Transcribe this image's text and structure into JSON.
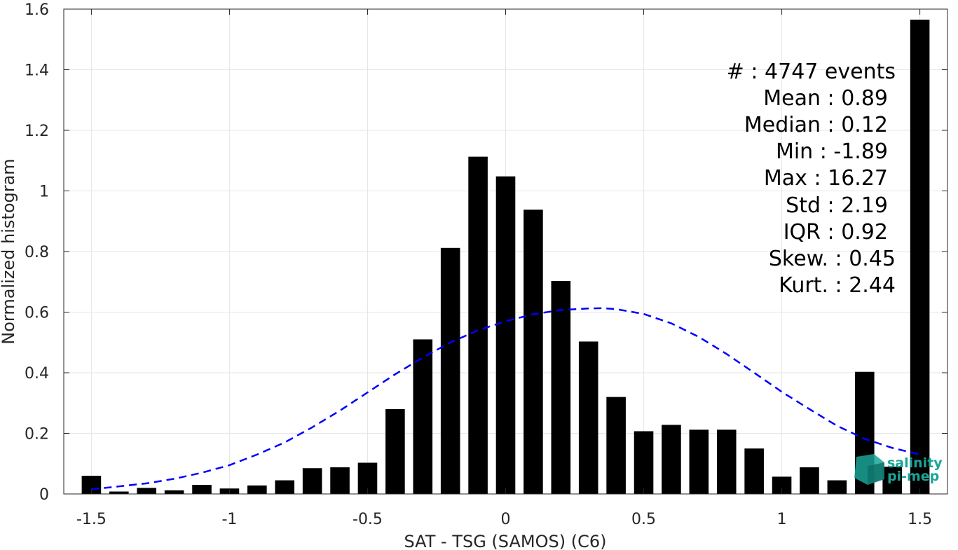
{
  "chart_data": {
    "type": "bar",
    "xlabel": "SAT - TSG (SAMOS) (C6)",
    "ylabel": "Normalized histogram",
    "xlim": [
      -1.6,
      1.6
    ],
    "ylim": [
      0,
      1.6
    ],
    "xticks": [
      -1.5,
      -1,
      -0.5,
      0,
      0.5,
      1,
      1.5
    ],
    "xtick_labels": [
      "-1.5",
      "-1",
      "-0.5",
      "0",
      "0.5",
      "1",
      "1.5"
    ],
    "yticks": [
      0,
      0.2,
      0.4,
      0.6,
      0.8,
      1,
      1.2,
      1.4,
      1.6
    ],
    "ytick_labels": [
      "0",
      "0.2",
      "0.4",
      "0.6",
      "0.8",
      "1",
      "1.2",
      "1.4",
      "1.6"
    ],
    "grid": true,
    "bar_width": 0.07,
    "x": [
      -1.5,
      -1.4,
      -1.3,
      -1.2,
      -1.1,
      -1.0,
      -0.9,
      -0.8,
      -0.7,
      -0.6,
      -0.5,
      -0.4,
      -0.3,
      -0.2,
      -0.1,
      0.0,
      0.1,
      0.2,
      0.3,
      0.4,
      0.5,
      0.6,
      0.7,
      0.8,
      0.9,
      1.0,
      1.1,
      1.2,
      1.3,
      1.4,
      1.5
    ],
    "values": [
      0.06,
      0.008,
      0.02,
      0.012,
      0.03,
      0.018,
      0.028,
      0.045,
      0.085,
      0.088,
      0.103,
      0.28,
      0.51,
      0.812,
      1.113,
      1.048,
      0.938,
      0.703,
      0.503,
      0.32,
      0.207,
      0.228,
      0.212,
      0.212,
      0.15,
      0.057,
      0.088,
      0.045,
      0.403,
      0.09,
      1.565
    ],
    "bar_color": "#000000",
    "fit_curve": {
      "style": "dashed",
      "color": "#0000ff",
      "x": [
        -1.5,
        -1.4,
        -1.3,
        -1.2,
        -1.1,
        -1.0,
        -0.9,
        -0.8,
        -0.7,
        -0.6,
        -0.5,
        -0.4,
        -0.3,
        -0.2,
        -0.1,
        0.0,
        0.1,
        0.2,
        0.3,
        0.35,
        0.4,
        0.5,
        0.6,
        0.7,
        0.8,
        0.9,
        1.0,
        1.1,
        1.2,
        1.3,
        1.4,
        1.5
      ],
      "y": [
        0.015,
        0.025,
        0.035,
        0.05,
        0.07,
        0.095,
        0.13,
        0.17,
        0.22,
        0.275,
        0.335,
        0.395,
        0.45,
        0.5,
        0.54,
        0.57,
        0.593,
        0.607,
        0.612,
        0.613,
        0.61,
        0.594,
        0.563,
        0.518,
        0.462,
        0.4,
        0.337,
        0.28,
        0.225,
        0.182,
        0.152,
        0.13
      ]
    },
    "stats": {
      "events_label": "#  : 4747 events",
      "mean_label": "Mean : 0.89",
      "median_label": "Median : 0.12",
      "min_label": "Min : -1.89",
      "max_label": "Max : 16.27",
      "std_label": "Std : 2.19",
      "iqr_label": "IQR : 0.92",
      "skew_label": "Skew. : 0.45",
      "kurt_label": "Kurt. : 2.44"
    }
  },
  "logo": {
    "line1": "salinity",
    "line2": "pi-mep",
    "color": "#1aa596"
  }
}
